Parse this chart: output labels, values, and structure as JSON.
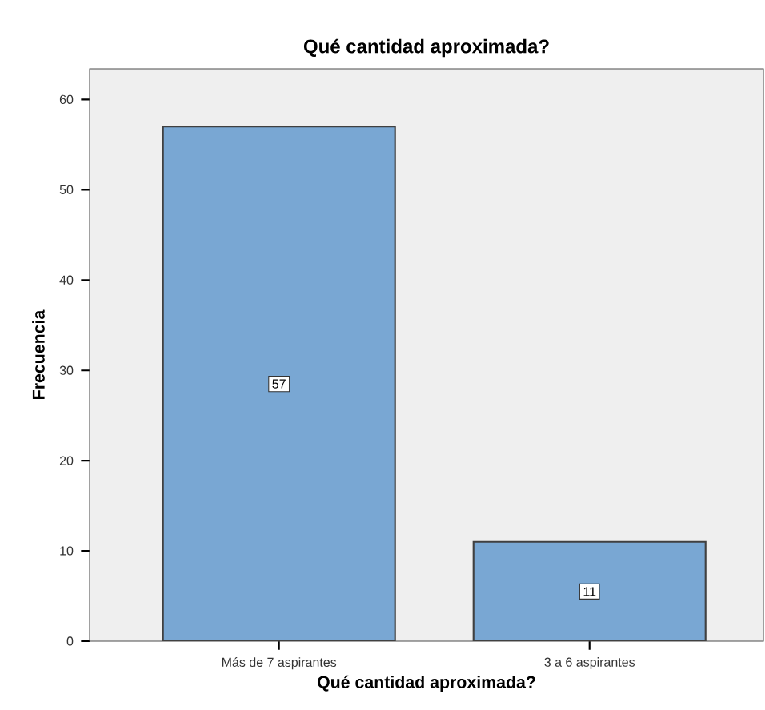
{
  "chart_data": {
    "type": "bar",
    "title": "Qué cantidad aproximada?",
    "xlabel": "Qué cantidad aproximada?",
    "ylabel": "Frecuencia",
    "categories": [
      "Más de 7 aspirantes",
      "3 a 6 aspirantes"
    ],
    "values": [
      57,
      11
    ],
    "color": "#79a7d3",
    "ylim": [
      0,
      63.4
    ],
    "yticks": [
      0,
      10,
      20,
      30,
      40,
      50,
      60
    ],
    "data_labels": true,
    "grid": false
  }
}
